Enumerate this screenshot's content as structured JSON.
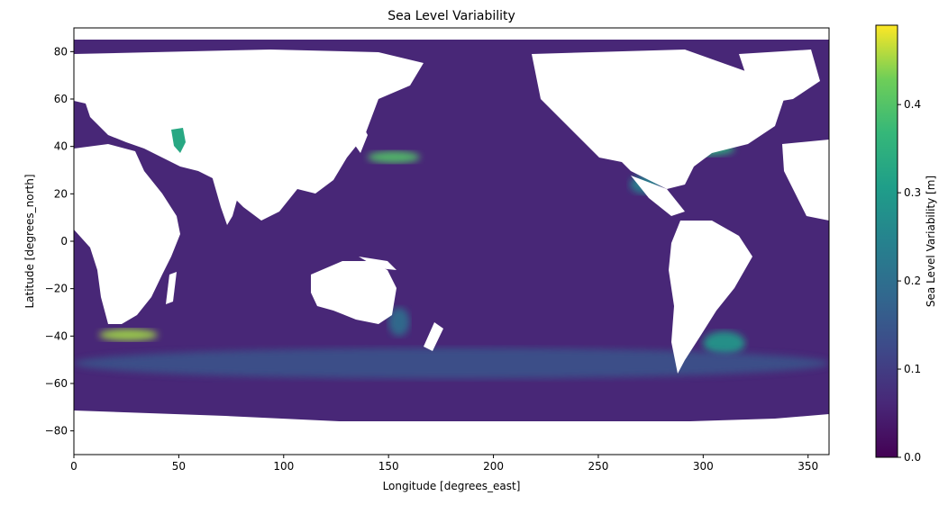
{
  "chart_data": {
    "type": "heatmap",
    "title": "Sea Level Variability",
    "xlabel": "Longitude [degrees_east]",
    "ylabel": "Latitude [degrees_north]",
    "xlim": [
      0,
      360
    ],
    "ylim": [
      -90,
      90
    ],
    "x_ticks": [
      0,
      50,
      100,
      150,
      200,
      250,
      300,
      350
    ],
    "y_ticks": [
      80,
      60,
      40,
      20,
      0,
      -20,
      -40,
      -60,
      -80
    ],
    "colormap": "viridis",
    "colorbar": {
      "label": "Sea Level Variability [m]",
      "range": [
        0.0,
        0.49
      ],
      "ticks": [
        0.0,
        0.1,
        0.2,
        0.3,
        0.4
      ],
      "tick_labels": [
        "0.0",
        "0.1",
        "0.2",
        "0.3",
        "0.4"
      ]
    },
    "background_value": 0.06,
    "land_mask": "white (no data)",
    "grid": false,
    "features": [
      {
        "name": "Kuroshio Extension",
        "lon": [
          140,
          165
        ],
        "lat": [
          33,
          38
        ],
        "value": 0.4
      },
      {
        "name": "Gulf Stream",
        "lon": [
          285,
          315
        ],
        "lat": [
          36,
          42
        ],
        "value": 0.35
      },
      {
        "name": "Agulhas Retroflection",
        "lon": [
          12,
          40
        ],
        "lat": [
          -42,
          -37
        ],
        "value": 0.45
      },
      {
        "name": "Brazil-Malvinas Confluence",
        "lon": [
          300,
          320
        ],
        "lat": [
          -48,
          -38
        ],
        "value": 0.3
      },
      {
        "name": "Caspian Sea",
        "lon": [
          47,
          54
        ],
        "lat": [
          37,
          47
        ],
        "value": 0.33
      },
      {
        "name": "Southern Ocean band",
        "lon": [
          0,
          360
        ],
        "lat": [
          -58,
          -45
        ],
        "value": 0.14
      },
      {
        "name": "East Australian Current",
        "lon": [
          150,
          160
        ],
        "lat": [
          -40,
          -28
        ],
        "value": 0.2
      },
      {
        "name": "Gulf of Mexico / Loop Current",
        "lon": [
          265,
          280
        ],
        "lat": [
          20,
          28
        ],
        "value": 0.25
      }
    ]
  }
}
